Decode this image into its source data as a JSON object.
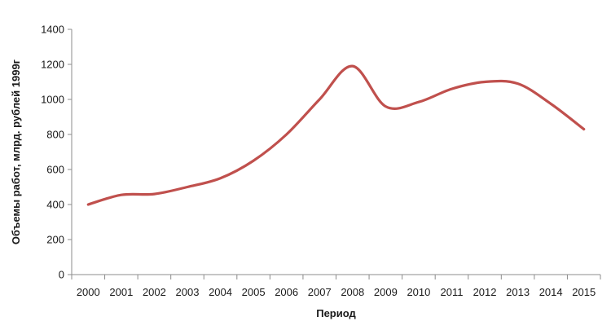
{
  "chart_data": {
    "type": "line",
    "title": "",
    "xlabel": "Период",
    "ylabel": "Объемы работ, млрд. рублей 1999г",
    "x": [
      "2000",
      "2001",
      "2002",
      "2003",
      "2004",
      "2005",
      "2006",
      "2007",
      "2008",
      "2009",
      "2010",
      "2011",
      "2012",
      "2013",
      "2014",
      "2015"
    ],
    "series": [
      {
        "values": [
          400,
          455,
          460,
          500,
          550,
          650,
          800,
          1000,
          1190,
          960,
          985,
          1060,
          1100,
          1090,
          975,
          830
        ],
        "color": "#c0504d"
      }
    ],
    "ylim": [
      0,
      1400
    ],
    "yticks": [
      0,
      200,
      400,
      600,
      800,
      1000,
      1200,
      1400
    ],
    "smooth": true,
    "grid": false,
    "legend": "none"
  },
  "colors": {
    "series_line": "#c0504d",
    "axis": "#8c8c8c",
    "text": "#1a1a1a"
  }
}
